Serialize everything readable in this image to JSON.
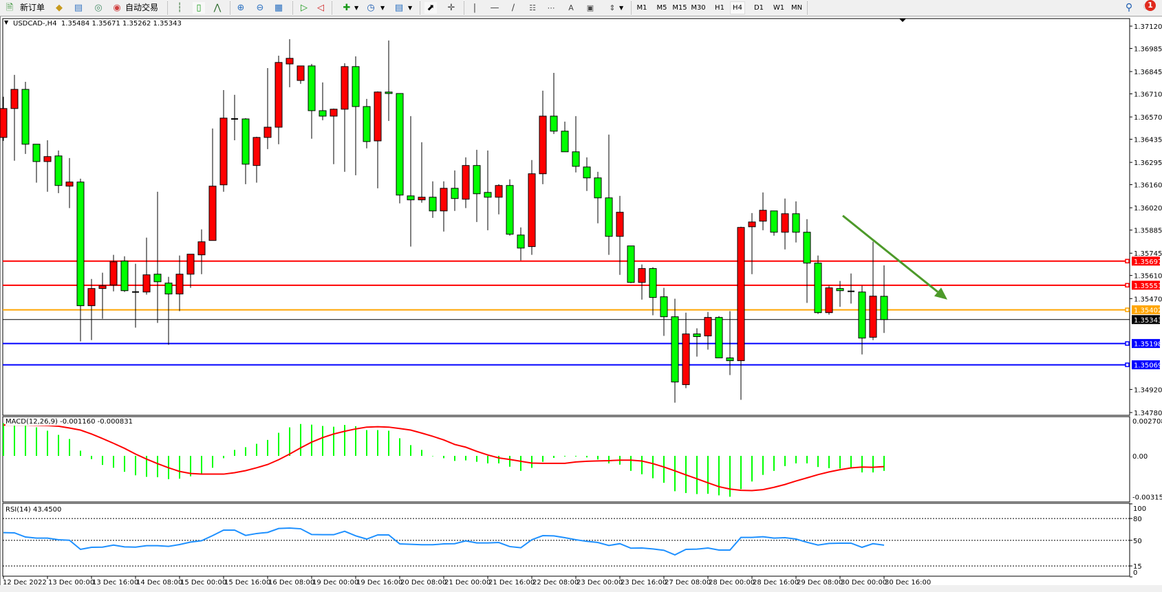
{
  "toolbar": {
    "new_order": "新订单",
    "auto_trading": "自动交易",
    "timeframes": [
      "M1",
      "M5",
      "M15",
      "M30",
      "H1",
      "H4",
      "D1",
      "W1",
      "MN"
    ],
    "active_timeframe": "H4",
    "notification_count": "1"
  },
  "chart": {
    "header": "USDCAD-,H4  1.35484 1.35671 1.35262 1.35343"
  },
  "colors": {
    "bull_body": "#ff0000",
    "bear_body": "#00ff00",
    "macd_histogram": "#00ff00",
    "macd_signal": "#ff0000",
    "rsi_line": "#1e90ff",
    "arrow": "#4d9a2a"
  },
  "chart_data": [
    {
      "type": "candlestick",
      "symbol": "USDCAD-",
      "timeframe": "H4",
      "ohlc_fields": [
        "open",
        "high",
        "low",
        "close"
      ],
      "ohlc": [
        [
          1.36446,
          1.36692,
          1.36425,
          1.36621
        ],
        [
          1.36621,
          1.36825,
          1.36305,
          1.36737
        ],
        [
          1.36737,
          1.36783,
          1.36346,
          1.36405
        ],
        [
          1.36405,
          1.36405,
          1.36172,
          1.363
        ],
        [
          1.363,
          1.36429,
          1.36117,
          1.3633
        ],
        [
          1.36334,
          1.36367,
          1.36109,
          1.36155
        ],
        [
          1.36151,
          1.36321,
          1.36018,
          1.36176
        ],
        [
          1.36176,
          1.36196,
          1.35211,
          1.35427
        ],
        [
          1.35427,
          1.35589,
          1.35219,
          1.35531
        ],
        [
          1.35531,
          1.35627,
          1.35348,
          1.35548
        ],
        [
          1.35552,
          1.35735,
          1.35514,
          1.35693
        ],
        [
          1.35697,
          1.35726,
          1.3551,
          1.35518
        ],
        [
          1.3551,
          1.35681,
          1.35294,
          1.3551
        ],
        [
          1.3551,
          1.35839,
          1.35494,
          1.35614
        ],
        [
          1.35618,
          1.36117,
          1.35323,
          1.35572
        ],
        [
          1.35564,
          1.35602,
          1.3519,
          1.35498
        ],
        [
          1.35498,
          1.35731,
          1.35394,
          1.35618
        ],
        [
          1.35618,
          1.35739,
          1.35535,
          1.35739
        ],
        [
          1.35735,
          1.35889,
          1.35618,
          1.35814
        ],
        [
          1.35822,
          1.365,
          1.35822,
          1.36151
        ],
        [
          1.36159,
          1.36733,
          1.36117,
          1.36563
        ],
        [
          1.36558,
          1.36704,
          1.36429,
          1.36558
        ],
        [
          1.36558,
          1.36563,
          1.36163,
          1.36284
        ],
        [
          1.36276,
          1.3645,
          1.36172,
          1.36446
        ],
        [
          1.36446,
          1.36866,
          1.36375,
          1.36508
        ],
        [
          1.36508,
          1.36941,
          1.36405,
          1.369
        ],
        [
          1.36891,
          1.37041,
          1.3675,
          1.36925
        ],
        [
          1.36791,
          1.36879,
          1.36771,
          1.36879
        ],
        [
          1.36879,
          1.36891,
          1.36438,
          1.36608
        ],
        [
          1.36608,
          1.36779,
          1.3655,
          1.36575
        ],
        [
          1.36575,
          1.36621,
          1.36284,
          1.36617
        ],
        [
          1.36617,
          1.36895,
          1.36238,
          1.36875
        ],
        [
          1.36875,
          1.36937,
          1.36217,
          1.36633
        ],
        [
          1.36633,
          1.36679,
          1.3638,
          1.36421
        ],
        [
          1.36425,
          1.36725,
          1.36138,
          1.36721
        ],
        [
          1.36721,
          1.37033,
          1.36546,
          1.36712
        ],
        [
          1.36712,
          1.36712,
          1.36047,
          1.36097
        ],
        [
          1.36092,
          1.36575,
          1.35785,
          1.36068
        ],
        [
          1.36068,
          1.36417,
          1.36051,
          1.36084
        ],
        [
          1.36084,
          1.3618,
          1.35959,
          1.36001
        ],
        [
          1.36001,
          1.3618,
          1.35876,
          1.36138
        ],
        [
          1.36138,
          1.36246,
          1.36001,
          1.36076
        ],
        [
          1.36072,
          1.36325,
          1.36018,
          1.36276
        ],
        [
          1.36276,
          1.36371,
          1.35934,
          1.36105
        ],
        [
          1.36113,
          1.36367,
          1.35884,
          1.36084
        ],
        [
          1.36084,
          1.36163,
          1.3598,
          1.36155
        ],
        [
          1.36155,
          1.36192,
          1.35851,
          1.3586
        ],
        [
          1.35855,
          1.35901,
          1.35701,
          1.35776
        ],
        [
          1.35785,
          1.36309,
          1.35735,
          1.36226
        ],
        [
          1.36226,
          1.36729,
          1.36163,
          1.36575
        ],
        [
          1.36575,
          1.36837,
          1.36467,
          1.36484
        ],
        [
          1.36484,
          1.36542,
          1.36359,
          1.36359
        ],
        [
          1.36359,
          1.36575,
          1.36234,
          1.36271
        ],
        [
          1.36267,
          1.36325,
          1.36122,
          1.36201
        ],
        [
          1.36201,
          1.36238,
          1.35926,
          1.3608
        ],
        [
          1.3608,
          1.36463,
          1.35735,
          1.35847
        ],
        [
          1.35847,
          1.36092,
          1.35614,
          1.35993
        ],
        [
          1.35789,
          1.35789,
          1.35564,
          1.35568
        ],
        [
          1.35568,
          1.35677,
          1.35464,
          1.35652
        ],
        [
          1.35652,
          1.3566,
          1.35369,
          1.35477
        ],
        [
          1.35481,
          1.35535,
          1.35244,
          1.3536
        ],
        [
          1.3536,
          1.35469,
          1.3484,
          1.34965
        ],
        [
          1.34949,
          1.35385,
          1.34928,
          1.35256
        ],
        [
          1.35256,
          1.3529,
          1.35119,
          1.3524
        ],
        [
          1.35244,
          1.35389,
          1.35161,
          1.35356
        ],
        [
          1.35356,
          1.35364,
          1.35111,
          1.35111
        ],
        [
          1.35111,
          1.35394,
          1.35007,
          1.35094
        ],
        [
          1.35094,
          1.35905,
          1.34857,
          1.35901
        ],
        [
          1.35905,
          1.35988,
          1.35618,
          1.35934
        ],
        [
          1.35939,
          1.36113,
          1.35884,
          1.36005
        ],
        [
          1.36001,
          1.36001,
          1.35851,
          1.35872
        ],
        [
          1.35872,
          1.36076,
          1.35768,
          1.35984
        ],
        [
          1.35984,
          1.36059,
          1.3581,
          1.35872
        ],
        [
          1.35872,
          1.35951,
          1.35444,
          1.35685
        ],
        [
          1.35685,
          1.35731,
          1.35377,
          1.35385
        ],
        [
          1.35385,
          1.35548,
          1.35373,
          1.35535
        ],
        [
          1.35531,
          1.35577,
          1.3542,
          1.35518
        ],
        [
          1.35514,
          1.35622,
          1.3544,
          1.35514
        ],
        [
          1.3551,
          1.35548,
          1.35132,
          1.35231
        ],
        [
          1.35236,
          1.35814,
          1.35219,
          1.35485
        ],
        [
          1.35484,
          1.35671,
          1.35262,
          1.35343
        ]
      ],
      "ylim": [
        1.3478,
        1.3712
      ],
      "price_ticks": [
        "1.37120",
        "1.36985",
        "1.36845",
        "1.36710",
        "1.36570",
        "1.36435",
        "1.36295",
        "1.36160",
        "1.36020",
        "1.35885",
        "1.35745",
        "1.35610",
        "1.35470",
        "1.34920",
        "1.34780"
      ],
      "horizontal_lines": [
        {
          "price": "1.35697",
          "color": "#ff0000"
        },
        {
          "price": "1.35551",
          "color": "#ff0000"
        },
        {
          "price": "1.35402",
          "color": "#ffa500"
        },
        {
          "price": "1.35198",
          "color": "#0000ff"
        },
        {
          "price": "1.35069",
          "color": "#0000ff"
        }
      ],
      "current_price": {
        "price": "1.35343",
        "color": "#000000"
      },
      "arrow": {
        "from": {
          "bar": 76.25,
          "price": 1.35972
        },
        "to": {
          "bar": 85.75,
          "price": 1.35464
        }
      },
      "time_labels": [
        {
          "bar": 0,
          "text": "12 Dec 2022"
        },
        {
          "bar": 4,
          "text": "13 Dec 00:00"
        },
        {
          "bar": 8,
          "text": "13 Dec 16:00"
        },
        {
          "bar": 12,
          "text": "14 Dec 08:00"
        },
        {
          "bar": 16,
          "text": "15 Dec 00:00"
        },
        {
          "bar": 20,
          "text": "15 Dec 16:00"
        },
        {
          "bar": 24,
          "text": "16 Dec 08:00"
        },
        {
          "bar": 28,
          "text": "19 Dec 00:00"
        },
        {
          "bar": 32,
          "text": "19 Dec 16:00"
        },
        {
          "bar": 36,
          "text": "20 Dec 08:00"
        },
        {
          "bar": 40,
          "text": "21 Dec 00:00"
        },
        {
          "bar": 44,
          "text": "21 Dec 16:00"
        },
        {
          "bar": 48,
          "text": "22 Dec 08:00"
        },
        {
          "bar": 52,
          "text": "23 Dec 00:00"
        },
        {
          "bar": 56,
          "text": "23 Dec 16:00"
        },
        {
          "bar": 60,
          "text": "27 Dec 08:00"
        },
        {
          "bar": 64,
          "text": "28 Dec 00:00"
        },
        {
          "bar": 68,
          "text": "28 Dec 16:00"
        },
        {
          "bar": 72,
          "text": "29 Dec 08:00"
        },
        {
          "bar": 76,
          "text": "30 Dec 00:00"
        },
        {
          "bar": 80,
          "text": "30 Dec 16:00"
        }
      ]
    },
    {
      "type": "bar+line",
      "label": "MACD(12,26,9) -0.001160 -0.000831",
      "ylim": [
        -0.003158,
        0.002708
      ],
      "axis_labels": [
        {
          "value": 0.002708,
          "text": "0.002708"
        },
        {
          "value": 0,
          "text": "0.00"
        },
        {
          "value": -0.003158,
          "text": "-0.003158"
        }
      ],
      "histogram": [
        0.00252,
        0.00243,
        0.00234,
        0.0022,
        0.00194,
        0.00162,
        0.0013,
        0.0004,
        -0.00025,
        -0.0007,
        -0.00092,
        -0.00123,
        -0.0015,
        -0.00162,
        -0.00165,
        -0.0018,
        -0.00176,
        -0.00158,
        -0.00141,
        -0.00092,
        -0.00018,
        0.00046,
        0.00067,
        0.00093,
        0.00123,
        0.00178,
        0.0022,
        0.00246,
        0.00241,
        0.00231,
        0.00225,
        0.00239,
        0.00229,
        0.00199,
        0.00199,
        0.00194,
        0.00136,
        0.00083,
        0.00046,
        -3e-05,
        -0.00018,
        -0.00039,
        -0.00035,
        -0.00046,
        -0.00058,
        -0.00058,
        -0.00084,
        -0.00116,
        -0.00093,
        -0.00046,
        -0.00016,
        -5e-05,
        -5e-05,
        -0.00012,
        -0.00028,
        -0.00058,
        -0.00068,
        -0.00116,
        -0.00142,
        -0.00173,
        -0.00208,
        -0.00273,
        -0.00287,
        -0.00295,
        -0.00293,
        -0.00305,
        -0.003158,
        -0.00257,
        -0.00198,
        -0.00147,
        -0.00116,
        -0.00079,
        -0.00058,
        -0.00058,
        -0.00086,
        -0.00095,
        -0.00098,
        -0.00089,
        -0.00128,
        -0.00128,
        -0.00116
      ],
      "signal": [
        0.00238,
        0.00238,
        0.00238,
        0.00236,
        0.00234,
        0.00229,
        0.00215,
        0.00199,
        0.00169,
        0.00134,
        0.00097,
        0.00058,
        0.00014,
        -0.00025,
        -0.0006,
        -0.00092,
        -0.0012,
        -0.00136,
        -0.00141,
        -0.00141,
        -0.00141,
        -0.0013,
        -0.00114,
        -0.00092,
        -0.00067,
        -0.0003,
        0.00014,
        0.00062,
        0.00106,
        0.00141,
        0.00169,
        0.0019,
        0.00208,
        0.00222,
        0.00225,
        0.00222,
        0.00211,
        0.00199,
        0.00176,
        0.00151,
        0.00123,
        0.00088,
        0.00067,
        0.00035,
        7e-05,
        -0.00016,
        -0.00028,
        -0.00042,
        -0.00056,
        -0.00058,
        -0.00058,
        -0.00058,
        -0.00047,
        -0.00042,
        -0.00039,
        -0.00037,
        -0.00033,
        -0.00033,
        -0.0004,
        -0.0006,
        -0.00086,
        -0.00116,
        -0.00147,
        -0.00177,
        -0.00208,
        -0.00238,
        -0.00256,
        -0.00266,
        -0.00268,
        -0.00261,
        -0.00243,
        -0.00221,
        -0.00194,
        -0.0017,
        -0.00145,
        -0.00124,
        -0.00107,
        -0.00093,
        -0.00086,
        -0.00088,
        -0.000831
      ]
    },
    {
      "type": "line",
      "label": "RSI(14) 43.4500",
      "ylim": [
        0,
        100
      ],
      "levels": [
        80,
        50,
        15
      ],
      "axis_labels": [
        {
          "value": 100,
          "text": "100"
        },
        {
          "value": 80,
          "text": "80"
        },
        {
          "value": 50,
          "text": "50"
        },
        {
          "value": 15,
          "text": "15"
        },
        {
          "value": 0,
          "text": "0"
        }
      ],
      "values": [
        60.6,
        60.3,
        54.6,
        53.1,
        53.1,
        50.9,
        50.2,
        37.7,
        40.5,
        40.8,
        43.6,
        41.1,
        40.8,
        42.7,
        42.7,
        41.8,
        44.3,
        47.7,
        49.6,
        56.5,
        64.1,
        64.1,
        56.8,
        59.4,
        60.9,
        66.3,
        66.9,
        65.9,
        58.1,
        57.8,
        57.8,
        62.5,
        56.2,
        51.8,
        57.5,
        57.5,
        45.2,
        44.6,
        44.0,
        44.0,
        45.2,
        45.5,
        49.3,
        46.5,
        46.5,
        47.1,
        41.5,
        39.9,
        50.9,
        56.5,
        56.2,
        53.7,
        50.9,
        48.7,
        47.1,
        43.0,
        45.5,
        39.3,
        39.6,
        38.3,
        36.4,
        30.1,
        37.7,
        38.0,
        39.6,
        36.7,
        36.7,
        54.0,
        54.0,
        55.0,
        53.1,
        53.7,
        51.8,
        47.4,
        43.6,
        45.8,
        46.2,
        46.2,
        40.5,
        45.5,
        43.45
      ]
    }
  ]
}
